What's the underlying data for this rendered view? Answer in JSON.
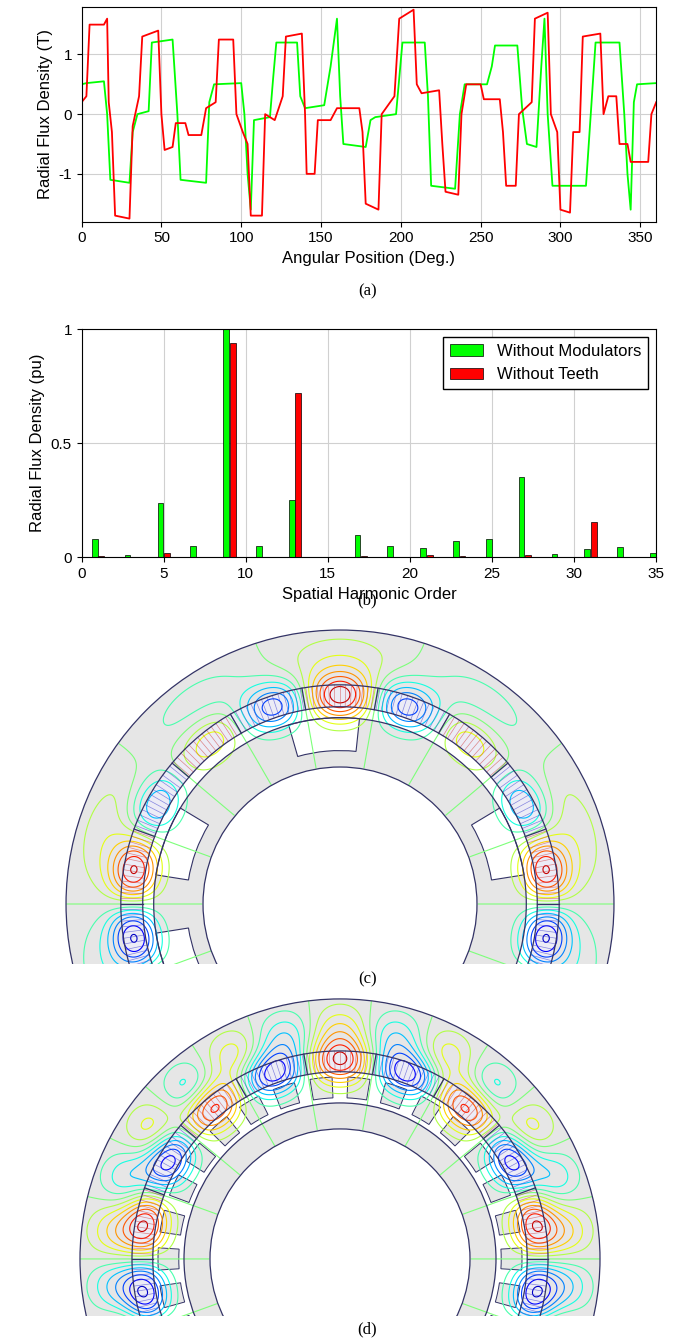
{
  "chart_data": [
    {
      "type": "line",
      "caption": "(a)",
      "x_label": "Angular Position (Deg.)",
      "y_label": "Radial Flux Density (T)",
      "xlim": [
        0,
        360
      ],
      "xticks": [
        0,
        50,
        100,
        150,
        200,
        250,
        300,
        350
      ],
      "ylim": [
        -1.8,
        1.8
      ],
      "yticks": [
        -1,
        0,
        1
      ],
      "grid": true,
      "series": [
        {
          "color": "#00ff00",
          "x": [
            0,
            3,
            14,
            16,
            18,
            30,
            32,
            35,
            42,
            44,
            57,
            60,
            62,
            78,
            80,
            83,
            100,
            102,
            104,
            106,
            108,
            118,
            120,
            122,
            135,
            137,
            140,
            152,
            156,
            160,
            162,
            164,
            178,
            181,
            184,
            197,
            199,
            201,
            215,
            217,
            219,
            234,
            237,
            240,
            254,
            257,
            259,
            273,
            276,
            279,
            285,
            288,
            290,
            292,
            295,
            316,
            319,
            322,
            337,
            340,
            342,
            344,
            346,
            348,
            360
          ],
          "values": [
            0.5,
            0.52,
            0.55,
            0.0,
            -1.1,
            -1.15,
            -0.3,
            0.0,
            0.05,
            1.2,
            1.25,
            0.0,
            -1.1,
            -1.15,
            0.2,
            0.5,
            0.52,
            0.0,
            -1.0,
            -1.6,
            -0.1,
            -0.05,
            0.6,
            1.2,
            1.2,
            0.3,
            0.1,
            0.15,
            0.8,
            1.6,
            0.3,
            -0.5,
            -0.55,
            -0.1,
            -0.05,
            0.0,
            0.6,
            1.2,
            1.2,
            0.3,
            -1.2,
            -1.25,
            0.0,
            0.5,
            0.5,
            0.8,
            1.15,
            1.15,
            0.1,
            -0.5,
            -0.55,
            0.8,
            1.6,
            0.0,
            -1.2,
            -1.2,
            0.0,
            1.2,
            1.2,
            0.0,
            -1.0,
            -1.6,
            0.2,
            0.5,
            0.52
          ]
        },
        {
          "color": "#ff0000",
          "x": [
            0,
            3,
            5,
            14,
            16,
            17,
            19,
            21,
            30,
            32,
            36,
            38,
            48,
            50,
            52,
            57,
            59,
            65,
            67,
            75,
            78,
            84,
            86,
            95,
            97,
            101,
            104,
            106,
            113,
            115,
            121,
            126,
            128,
            138,
            140,
            141,
            146,
            148,
            156,
            160,
            174,
            176,
            178,
            186,
            188,
            196,
            199,
            208,
            210,
            213,
            224,
            226,
            228,
            236,
            238,
            241,
            250,
            252,
            262,
            264,
            266,
            272,
            274,
            282,
            284,
            292,
            294,
            298,
            300,
            306,
            308,
            312,
            314,
            325,
            327,
            330,
            335,
            337,
            342,
            344,
            355,
            357,
            360
          ],
          "values": [
            0.2,
            0.3,
            1.5,
            1.5,
            1.6,
            0.2,
            -0.3,
            -1.7,
            -1.75,
            -0.2,
            0.3,
            1.3,
            1.4,
            0.0,
            -0.6,
            -0.55,
            -0.15,
            -0.15,
            -0.35,
            -0.35,
            0.1,
            0.2,
            1.25,
            1.25,
            0.0,
            -0.3,
            -0.5,
            -1.7,
            -1.7,
            0.0,
            -0.1,
            0.3,
            1.3,
            1.35,
            0.0,
            -1.0,
            -1.0,
            -0.1,
            -0.1,
            0.1,
            0.1,
            -0.3,
            -1.5,
            -1.6,
            0.0,
            0.3,
            1.6,
            1.75,
            0.5,
            0.35,
            0.4,
            -0.5,
            -1.3,
            -1.35,
            0.0,
            0.5,
            0.5,
            0.25,
            0.25,
            -0.3,
            -1.2,
            -1.2,
            0.0,
            0.2,
            1.6,
            1.7,
            0.0,
            -0.3,
            -1.6,
            -1.65,
            -0.3,
            -0.3,
            1.3,
            1.35,
            0.0,
            0.3,
            0.3,
            -0.5,
            -0.5,
            -0.8,
            -0.8,
            0.0,
            0.2
          ]
        }
      ]
    },
    {
      "type": "bar",
      "caption": "(b)",
      "x_label": "Spatial Harmonic Order",
      "y_label": "Radial Flux Density (pu)",
      "xlim": [
        0,
        35
      ],
      "xticks": [
        0,
        5,
        10,
        15,
        20,
        25,
        30,
        35
      ],
      "ylim": [
        0,
        1
      ],
      "yticks": [
        0,
        0.5,
        1
      ],
      "grid": true,
      "legend": "upper right",
      "x": [
        1,
        3,
        5,
        7,
        9,
        11,
        13,
        15,
        17,
        19,
        21,
        23,
        25,
        27,
        29,
        31,
        33,
        35
      ],
      "series": [
        {
          "name": "Without Modulators",
          "color": "#00ff00",
          "values": [
            0.08,
            0.01,
            0.24,
            0.05,
            1.0,
            0.05,
            0.25,
            0.0,
            0.1,
            0.05,
            0.04,
            0.07,
            0.08,
            0.35,
            0.015,
            0.035,
            0.045,
            0.02
          ]
        },
        {
          "name": "Without Teeth",
          "color": "#ff0000",
          "values": [
            0.005,
            0.0,
            0.02,
            0.0,
            0.94,
            0.0,
            0.72,
            0.0,
            0.005,
            0.0,
            0.01,
            0.005,
            0.0,
            0.01,
            0.0,
            0.155,
            0.0,
            0.0
          ]
        }
      ]
    }
  ],
  "diagrams": [
    {
      "caption": "(c)"
    },
    {
      "caption": "(d)"
    }
  ]
}
